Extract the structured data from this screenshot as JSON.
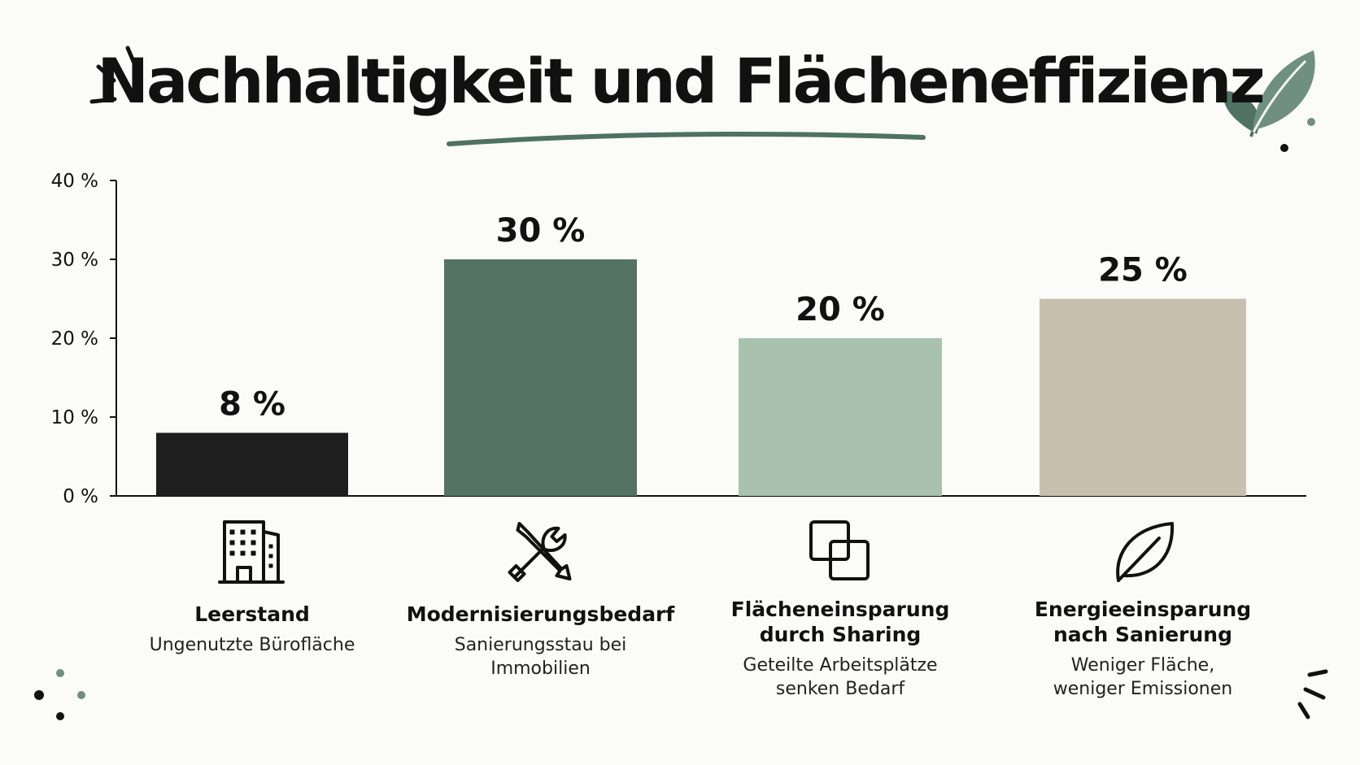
{
  "title": "Nachhaltigkeit und Flächeneffizienz",
  "colors": {
    "accent": "#4f7262",
    "dark": "#1e1e1e",
    "sage": "#a9c2b0",
    "beige": "#c7c0ae"
  },
  "chart_data": {
    "type": "bar",
    "title": "Nachhaltigkeit und Flächeneffizienz",
    "xlabel": "",
    "ylabel": "",
    "ylim": [
      0,
      40
    ],
    "yticks": [
      "0 %",
      "10 %",
      "20 %",
      "30 %",
      "40 %"
    ],
    "grid": false,
    "categories": [
      "Leerstand",
      "Modernisierungsbedarf",
      "Flächeneinsparung durch Sharing",
      "Energieeinsparung nach Sanierung"
    ],
    "values": [
      8,
      30,
      20,
      25
    ],
    "value_labels": [
      "8 %",
      "30 %",
      "20 %",
      "25 %"
    ],
    "bar_colors": [
      "#1e1e1e",
      "#557363",
      "#a9c2b0",
      "#c7c0ae"
    ],
    "items": [
      {
        "name_lines": [
          "Leerstand"
        ],
        "desc_lines": [
          "Ungenutzte Bürofläche"
        ],
        "icon": "office-building-icon"
      },
      {
        "name_lines": [
          "Modernisierungsbedarf"
        ],
        "desc_lines": [
          "Sanierungsstau bei",
          "Immobilien"
        ],
        "icon": "tools-icon"
      },
      {
        "name_lines": [
          "Flächeneinsparung",
          "durch Sharing"
        ],
        "desc_lines": [
          "Geteilte Arbeitsplätze",
          "senken Bedarf"
        ],
        "icon": "overlapping-squares-icon"
      },
      {
        "name_lines": [
          "Energieeinsparung",
          "nach Sanierung"
        ],
        "desc_lines": [
          "Weniger Fläche,",
          "weniger Emissionen"
        ],
        "icon": "leaf-icon"
      }
    ]
  }
}
